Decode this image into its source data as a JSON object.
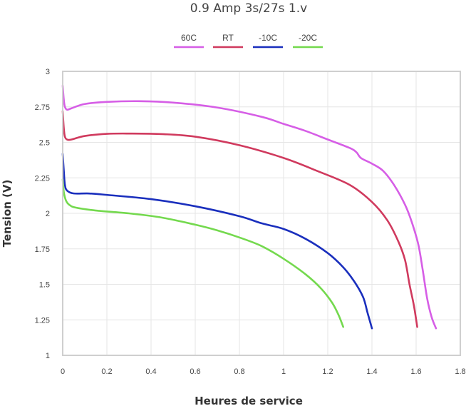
{
  "chart_data": {
    "type": "line",
    "title": "0.9 Amp 3s/27s 1.v",
    "xlabel": "Heures de service",
    "ylabel": "Tension (V)",
    "xlim": [
      0,
      1.8
    ],
    "ylim": [
      1,
      3
    ],
    "x_ticks": [
      "0",
      "0.2",
      "0.4",
      "0.6",
      "0.8",
      "1",
      "1.2",
      "1.4",
      "1.6",
      "1.8"
    ],
    "y_ticks": [
      "1",
      "1.25",
      "1.5",
      "1.75",
      "2",
      "2.25",
      "2.5",
      "2.75",
      "3"
    ],
    "grid": true,
    "legend_position": "top",
    "series": [
      {
        "name": "60C",
        "color": "#d65ee6",
        "points": [
          [
            0.0,
            2.9
          ],
          [
            0.005,
            2.8
          ],
          [
            0.01,
            2.75
          ],
          [
            0.02,
            2.73
          ],
          [
            0.04,
            2.74
          ],
          [
            0.1,
            2.77
          ],
          [
            0.2,
            2.785
          ],
          [
            0.35,
            2.79
          ],
          [
            0.5,
            2.78
          ],
          [
            0.7,
            2.745
          ],
          [
            0.9,
            2.68
          ],
          [
            1.0,
            2.63
          ],
          [
            1.1,
            2.58
          ],
          [
            1.2,
            2.52
          ],
          [
            1.3,
            2.46
          ],
          [
            1.33,
            2.43
          ],
          [
            1.35,
            2.39
          ],
          [
            1.4,
            2.35
          ],
          [
            1.45,
            2.3
          ],
          [
            1.5,
            2.2
          ],
          [
            1.55,
            2.06
          ],
          [
            1.58,
            1.94
          ],
          [
            1.61,
            1.78
          ],
          [
            1.63,
            1.6
          ],
          [
            1.65,
            1.4
          ],
          [
            1.67,
            1.27
          ],
          [
            1.69,
            1.19
          ]
        ]
      },
      {
        "name": "RT",
        "color": "#d03a5e",
        "points": [
          [
            0.0,
            2.72
          ],
          [
            0.005,
            2.6
          ],
          [
            0.01,
            2.54
          ],
          [
            0.02,
            2.52
          ],
          [
            0.04,
            2.52
          ],
          [
            0.1,
            2.545
          ],
          [
            0.2,
            2.56
          ],
          [
            0.3,
            2.562
          ],
          [
            0.45,
            2.558
          ],
          [
            0.6,
            2.54
          ],
          [
            0.8,
            2.48
          ],
          [
            1.0,
            2.39
          ],
          [
            1.15,
            2.3
          ],
          [
            1.3,
            2.2
          ],
          [
            1.4,
            2.08
          ],
          [
            1.47,
            1.95
          ],
          [
            1.52,
            1.8
          ],
          [
            1.55,
            1.67
          ],
          [
            1.57,
            1.5
          ],
          [
            1.59,
            1.35
          ],
          [
            1.605,
            1.2
          ]
        ]
      },
      {
        "name": "-10C",
        "color": "#1a2fbd",
        "points": [
          [
            0.0,
            2.42
          ],
          [
            0.005,
            2.3
          ],
          [
            0.01,
            2.2
          ],
          [
            0.02,
            2.16
          ],
          [
            0.05,
            2.14
          ],
          [
            0.12,
            2.14
          ],
          [
            0.2,
            2.13
          ],
          [
            0.4,
            2.1
          ],
          [
            0.6,
            2.05
          ],
          [
            0.8,
            1.98
          ],
          [
            0.9,
            1.93
          ],
          [
            1.0,
            1.89
          ],
          [
            1.1,
            1.82
          ],
          [
            1.2,
            1.72
          ],
          [
            1.27,
            1.62
          ],
          [
            1.32,
            1.52
          ],
          [
            1.36,
            1.41
          ],
          [
            1.38,
            1.3
          ],
          [
            1.4,
            1.19
          ]
        ]
      },
      {
        "name": "-20C",
        "color": "#74d94e",
        "points": [
          [
            0.0,
            2.24
          ],
          [
            0.005,
            2.15
          ],
          [
            0.015,
            2.09
          ],
          [
            0.03,
            2.06
          ],
          [
            0.06,
            2.04
          ],
          [
            0.15,
            2.02
          ],
          [
            0.3,
            2.0
          ],
          [
            0.45,
            1.97
          ],
          [
            0.6,
            1.92
          ],
          [
            0.7,
            1.88
          ],
          [
            0.8,
            1.83
          ],
          [
            0.9,
            1.77
          ],
          [
            1.0,
            1.68
          ],
          [
            1.1,
            1.57
          ],
          [
            1.17,
            1.47
          ],
          [
            1.22,
            1.37
          ],
          [
            1.25,
            1.28
          ],
          [
            1.27,
            1.2
          ]
        ]
      }
    ]
  }
}
